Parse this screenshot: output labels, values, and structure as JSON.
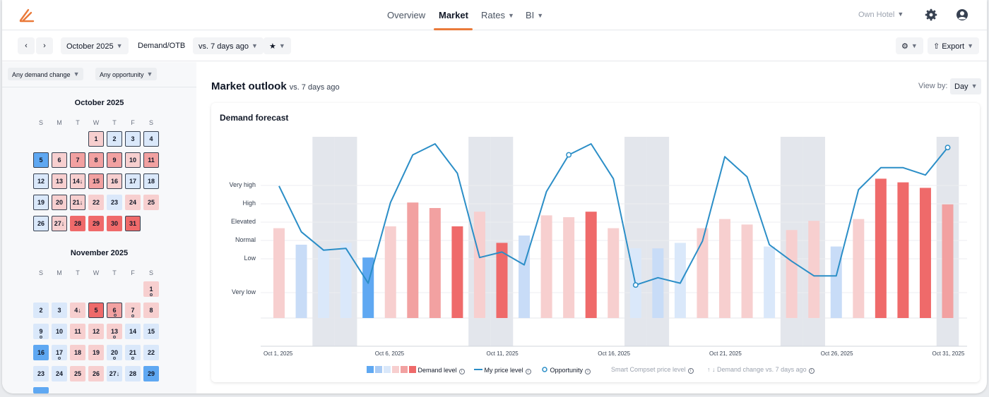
{
  "nav": {
    "links": [
      "Overview",
      "Market",
      "Rates",
      "BI"
    ],
    "active": "Market",
    "hotel_selector": "Own Hotel",
    "accent": "#ea7a3a"
  },
  "toolbar": {
    "month": "October 2025",
    "metric": "Demand/OTB",
    "compare": "vs. 7 days ago",
    "export": "Export",
    "icons": [
      "chevron-left-icon",
      "chevron-right-icon",
      "star-icon",
      "gear-icon",
      "export-icon"
    ]
  },
  "filters": {
    "demand_change": "Any demand change",
    "opportunity": "Any opportunity"
  },
  "calendar": {
    "weekdays": [
      "S",
      "M",
      "T",
      "W",
      "T",
      "F",
      "S"
    ],
    "months": [
      {
        "title": "October 2025",
        "days": [
          "1",
          "2",
          "3",
          "4",
          "5",
          "6",
          "7",
          "8",
          "9",
          "10",
          "11",
          "12",
          "13",
          "14↓",
          "15",
          "16",
          "17",
          "18",
          "19",
          "20",
          "21↓",
          "22",
          "23",
          "24",
          "25",
          "26",
          "27↓",
          "28",
          "29",
          "30",
          "31"
        ]
      },
      {
        "title": "November 2025",
        "days": [
          "1",
          "2",
          "3",
          "4↓",
          "5",
          "6",
          "7",
          "8",
          "9",
          "10",
          "11",
          "12",
          "13",
          "14",
          "15",
          "16",
          "17",
          "18",
          "19",
          "20",
          "21",
          "22",
          "23",
          "24",
          "25",
          "26",
          "27↓",
          "28",
          "29"
        ]
      }
    ]
  },
  "main": {
    "title": "Market outlook",
    "subtitle": "vs. 7 days ago",
    "view_by_label": "View by:",
    "view_by_value": "Day",
    "card_title": "Demand forecast"
  },
  "chart_data": {
    "type": "bar",
    "y_levels": [
      "Very high",
      "High",
      "Elevated",
      "Normal",
      "Low",
      "Very low"
    ],
    "x_tick_labels": [
      "Oct 1, 2025",
      "Oct 6, 2025",
      "Oct 11, 2025",
      "Oct 16, 2025",
      "Oct 21, 2025",
      "Oct 26, 2025",
      "Oct 31, 2025"
    ],
    "categories": [
      "Oct 1",
      "Oct 2",
      "Oct 3",
      "Oct 4",
      "Oct 5",
      "Oct 6",
      "Oct 7",
      "Oct 8",
      "Oct 9",
      "Oct 10",
      "Oct 11",
      "Oct 12",
      "Oct 13",
      "Oct 14",
      "Oct 15",
      "Oct 16",
      "Oct 17",
      "Oct 18",
      "Oct 19",
      "Oct 20",
      "Oct 21",
      "Oct 22",
      "Oct 23",
      "Oct 24",
      "Oct 25",
      "Oct 26",
      "Oct 27",
      "Oct 28",
      "Oct 29",
      "Oct 30",
      "Oct 31"
    ],
    "series": [
      {
        "name": "Demand level",
        "values": [
          4.9,
          4.0,
          3.8,
          4.1,
          3.3,
          5.0,
          6.3,
          6.0,
          5.0,
          5.8,
          4.1,
          4.5,
          5.6,
          5.5,
          5.8,
          4.9,
          3.8,
          3.8,
          4.1,
          4.9,
          5.4,
          5.1,
          3.9,
          4.8,
          5.3,
          3.9,
          5.4,
          7.6,
          7.4,
          7.1,
          6.2
        ],
        "levels": [
          4,
          2,
          3,
          3,
          1,
          4,
          5,
          5,
          6,
          4,
          6,
          2,
          4,
          4,
          6,
          4,
          3,
          2,
          3,
          4,
          4,
          4,
          3,
          4,
          4,
          2,
          4,
          6,
          6,
          6,
          5
        ]
      },
      {
        "name": "My price level",
        "values": [
          7.2,
          4.7,
          3.7,
          3.8,
          1.9,
          6.3,
          8.9,
          9.5,
          7.9,
          3.3,
          3.6,
          2.9,
          6.9,
          8.9,
          9.5,
          7.6,
          1.8,
          2.2,
          1.9,
          4.2,
          8.8,
          7.7,
          4.0,
          3.1,
          2.3,
          2.3,
          7.0,
          8.2,
          8.2,
          7.8,
          9.3
        ]
      }
    ],
    "opportunity_days": [
      "Oct 14",
      "Oct 17",
      "Oct 31"
    ],
    "weekend_days": [
      "Oct 3",
      "Oct 4",
      "Oct 10",
      "Oct 11",
      "Oct 17",
      "Oct 18",
      "Oct 24",
      "Oct 25",
      "Oct 31"
    ],
    "colors": {
      "level_1": "#5fa8f2",
      "level_2": "#c8dcf7",
      "level_3": "#dae8fa",
      "level_4": "#f7cfcf",
      "level_5": "#f2a1a1",
      "level_6": "#ef6a6a",
      "price_line": "#2b8ec7",
      "weekend_band": "#e3e6ec"
    },
    "legend": [
      "Demand level",
      "My price level",
      "Opportunity",
      "Smart Compset price level",
      "Demand change vs. 7 days ago"
    ]
  }
}
